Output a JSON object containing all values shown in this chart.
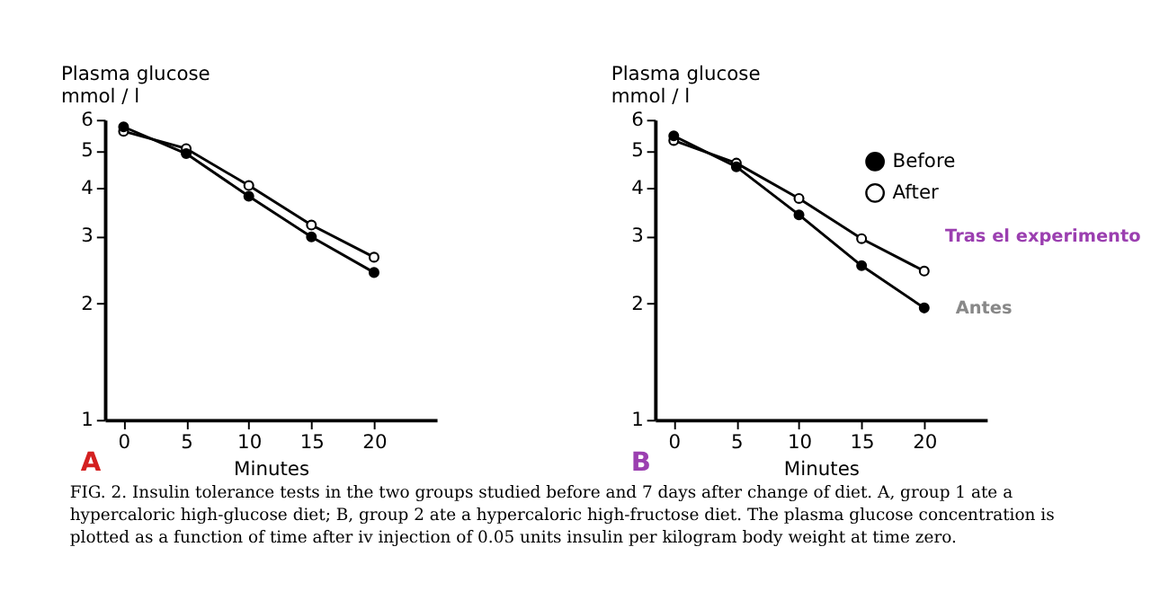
{
  "chart_data": [
    {
      "type": "line",
      "ylabel": "Plasma glucose\nmmol / l",
      "xlabel": "Minutes",
      "x": [
        0,
        5,
        10,
        15,
        20
      ],
      "series": [
        {
          "color": "#000000",
          "values": [
            5.75,
            4.9,
            3.8,
            2.98,
            2.41
          ]
        },
        {
          "color": "#000000",
          "values": [
            5.6,
            5.05,
            4.05,
            3.2,
            2.64
          ]
        }
      ],
      "xlim": [
        -1.5,
        25
      ],
      "xticks": [
        0,
        5,
        10,
        15,
        20
      ],
      "ylim": [
        1,
        6
      ],
      "yticks": [
        1,
        2,
        3,
        4,
        5,
        6
      ],
      "log": "y",
      "marker": "circle",
      "annotations": [
        "A",
        "FIG. 2. Insulin tolerance tests in the two groups studied before and 7 days after change of diet. A, group 1 ate a hypercaloric high-glucose diet; B, group 2 ate a hypercaloric high-fructose diet. The plasma glucose concentration is plotted as a function of time after iv injection of 0.05 units insulin per kilogram body weight at time zero."
      ]
    },
    {
      "type": "line",
      "ylabel": "Plasma glucose\nmmol / l",
      "xlabel": "Minutes",
      "x": [
        0,
        5,
        10,
        15,
        20
      ],
      "series": [
        {
          "name": "Before",
          "color": "#000000",
          "values": [
            5.45,
            4.53,
            3.4,
            2.51,
            1.95
          ]
        },
        {
          "name": "After",
          "color": "#000000",
          "values": [
            5.3,
            4.63,
            3.75,
            2.95,
            2.43
          ]
        }
      ],
      "xlim": [
        -1.5,
        25
      ],
      "xticks": [
        0,
        5,
        10,
        15,
        20
      ],
      "ylim": [
        1,
        6
      ],
      "yticks": [
        1,
        2,
        3,
        4,
        5,
        6
      ],
      "log": "y",
      "marker": "circle",
      "legend": "top right",
      "annotations": [
        "B",
        {
          "text": "Tras el experimento",
          "x": 20,
          "y": 2.43
        },
        {
          "text": "Antes",
          "x": 20,
          "y": 1.95
        }
      ]
    }
  ]
}
